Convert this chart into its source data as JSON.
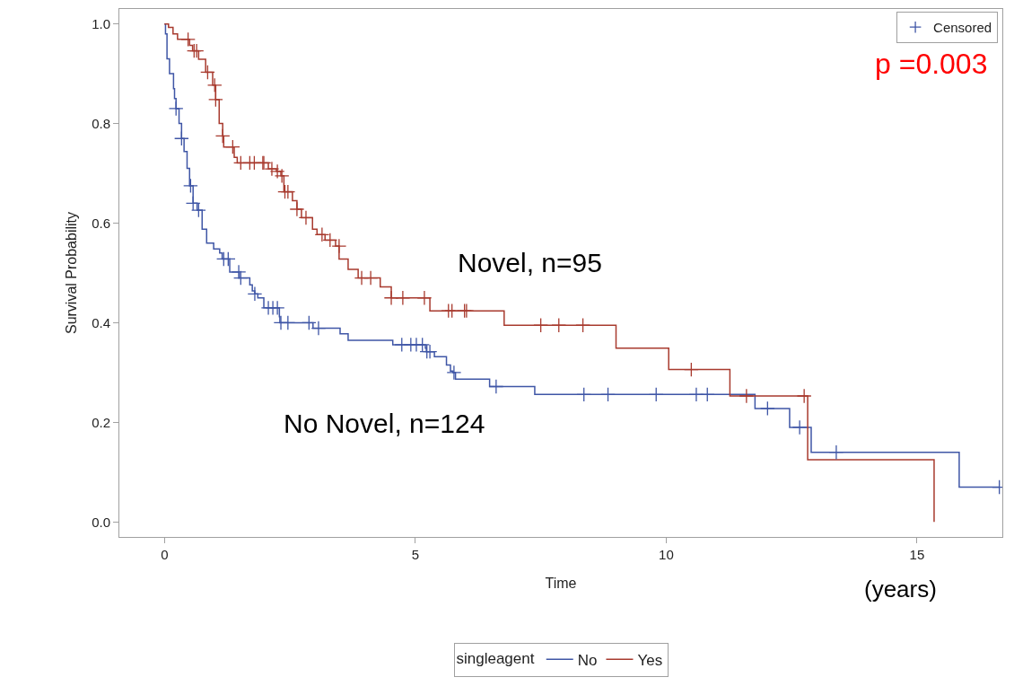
{
  "chart_data": {
    "type": "step",
    "xlabel": "Time",
    "ylabel": "Survival Probability",
    "legend_title": "singleagent",
    "legend": "bottom",
    "xlim": [
      -0.9,
      16.7
    ],
    "xticks": [
      0,
      5,
      10,
      15
    ],
    "ylim": [
      -0.03,
      1.03
    ],
    "yticks": [
      {
        "value": 0,
        "label": "0.0"
      },
      {
        "value": 0.2,
        "label": "0.2"
      },
      {
        "value": 0.4,
        "label": "0.4"
      },
      {
        "value": 0.6,
        "label": "0.6"
      },
      {
        "value": 0.8,
        "label": "0.8"
      },
      {
        "value": 1,
        "label": "1.0"
      }
    ],
    "series": [
      {
        "name": "No",
        "color": "#3f56a6",
        "x": [
          0,
          0.02,
          0.05,
          0.1,
          0.18,
          0.2,
          0.23,
          0.29,
          0.34,
          0.39,
          0.45,
          0.5,
          0.57,
          0.65,
          0.75,
          0.84,
          0.98,
          1.1,
          1.15,
          1.3,
          1.49,
          1.7,
          1.75,
          1.8,
          1.86,
          1.98,
          2.29,
          2.3,
          2.96,
          3.5,
          3.66,
          4.55,
          5.2,
          5.22,
          5.38,
          5.62,
          5.7,
          5.75,
          5.8,
          6.48,
          7.38,
          11.77,
          12.46,
          12.89,
          15.84,
          16.64
        ],
        "values": [
          1.0,
          0.98,
          0.93,
          0.9,
          0.87,
          0.85,
          0.83,
          0.8,
          0.77,
          0.744,
          0.71,
          0.675,
          0.64,
          0.626,
          0.588,
          0.56,
          0.548,
          0.54,
          0.528,
          0.502,
          0.49,
          0.476,
          0.464,
          0.458,
          0.45,
          0.43,
          0.412,
          0.4,
          0.389,
          0.378,
          0.365,
          0.356,
          0.349,
          0.342,
          0.332,
          0.315,
          0.303,
          0.3,
          0.287,
          0.272,
          0.256,
          0.228,
          0.19,
          0.14,
          0.07,
          0.07
        ]
      },
      {
        "name": "Yes",
        "color": "#a83a2e",
        "x": [
          0,
          0.08,
          0.17,
          0.26,
          0.5,
          0.56,
          0.68,
          0.82,
          0.96,
          1.02,
          1.09,
          1.16,
          1.18,
          1.39,
          1.45,
          2.07,
          2.23,
          2.32,
          2.38,
          2.55,
          2.64,
          2.73,
          2.95,
          3.04,
          3.2,
          3.41,
          3.48,
          3.66,
          3.86,
          4.3,
          4.52,
          5.29,
          6.77,
          9.0,
          10.05,
          11.27,
          12.82,
          15.34
        ],
        "values": [
          1.0,
          0.993,
          0.98,
          0.969,
          0.957,
          0.946,
          0.929,
          0.903,
          0.877,
          0.848,
          0.8,
          0.775,
          0.753,
          0.732,
          0.721,
          0.709,
          0.704,
          0.695,
          0.663,
          0.645,
          0.628,
          0.611,
          0.588,
          0.577,
          0.566,
          0.554,
          0.528,
          0.507,
          0.49,
          0.472,
          0.45,
          0.424,
          0.395,
          0.349,
          0.306,
          0.253,
          0.125,
          0.0
        ]
      },
      {
        "type": "scatter",
        "name": "Censored",
        "marker": "cross",
        "x": [
          0.23,
          0.34,
          0.52,
          0.57,
          0.68,
          1.18,
          1.27,
          1.48,
          1.52,
          1.8,
          2.07,
          2.16,
          2.25,
          2.32,
          2.46,
          2.88,
          3.07,
          4.73,
          4.91,
          5.02,
          5.14,
          5.23,
          5.29,
          5.77,
          6.61,
          8.36,
          8.84,
          9.8,
          10.6,
          10.82,
          12.02,
          12.66,
          13.39,
          16.64,
          0.47,
          0.59,
          0.64,
          0.86,
          1.0,
          1.02,
          1.16,
          1.36,
          1.52,
          1.7,
          1.79,
          1.96,
          1.98,
          2.14,
          2.25,
          2.34,
          2.4,
          2.46,
          2.64,
          2.82,
          3.14,
          3.3,
          3.48,
          3.93,
          4.11,
          4.52,
          4.75,
          5.18,
          5.66,
          5.73,
          5.98,
          6.02,
          7.5,
          7.86,
          8.34,
          10.5,
          11.6,
          12.75
        ],
        "values": [
          0.83,
          0.77,
          0.675,
          0.64,
          0.626,
          0.528,
          0.528,
          0.502,
          0.49,
          0.458,
          0.43,
          0.43,
          0.43,
          0.4,
          0.4,
          0.4,
          0.389,
          0.356,
          0.356,
          0.356,
          0.356,
          0.342,
          0.342,
          0.3,
          0.272,
          0.256,
          0.256,
          0.256,
          0.256,
          0.256,
          0.228,
          0.19,
          0.14,
          0.07,
          0.969,
          0.946,
          0.946,
          0.903,
          0.877,
          0.848,
          0.775,
          0.753,
          0.721,
          0.721,
          0.721,
          0.721,
          0.721,
          0.709,
          0.704,
          0.695,
          0.663,
          0.663,
          0.628,
          0.611,
          0.577,
          0.566,
          0.554,
          0.49,
          0.49,
          0.45,
          0.45,
          0.45,
          0.424,
          0.424,
          0.424,
          0.424,
          0.395,
          0.395,
          0.395,
          0.306,
          0.253,
          0.253
        ],
        "colors": [
          "#3f56a6",
          "#3f56a6",
          "#3f56a6",
          "#3f56a6",
          "#3f56a6",
          "#3f56a6",
          "#3f56a6",
          "#3f56a6",
          "#3f56a6",
          "#3f56a6",
          "#3f56a6",
          "#3f56a6",
          "#3f56a6",
          "#3f56a6",
          "#3f56a6",
          "#3f56a6",
          "#3f56a6",
          "#3f56a6",
          "#3f56a6",
          "#3f56a6",
          "#3f56a6",
          "#3f56a6",
          "#3f56a6",
          "#3f56a6",
          "#3f56a6",
          "#3f56a6",
          "#3f56a6",
          "#3f56a6",
          "#3f56a6",
          "#3f56a6",
          "#3f56a6",
          "#3f56a6",
          "#3f56a6",
          "#3f56a6",
          "#a83a2e",
          "#a83a2e",
          "#a83a2e",
          "#a83a2e",
          "#a83a2e",
          "#a83a2e",
          "#a83a2e",
          "#a83a2e",
          "#a83a2e",
          "#a83a2e",
          "#a83a2e",
          "#a83a2e",
          "#a83a2e",
          "#a83a2e",
          "#a83a2e",
          "#a83a2e",
          "#a83a2e",
          "#a83a2e",
          "#a83a2e",
          "#a83a2e",
          "#a83a2e",
          "#a83a2e",
          "#a83a2e",
          "#a83a2e",
          "#a83a2e",
          "#a83a2e",
          "#a83a2e",
          "#a83a2e",
          "#a83a2e",
          "#a83a2e",
          "#a83a2e",
          "#a83a2e",
          "#a83a2e",
          "#a83a2e",
          "#a83a2e",
          "#a83a2e",
          "#a83a2e",
          "#a83a2e"
        ]
      }
    ],
    "annotations": [
      "p =0.003",
      "(years)",
      "Novel, n=95",
      "No Novel, n=124"
    ]
  }
}
